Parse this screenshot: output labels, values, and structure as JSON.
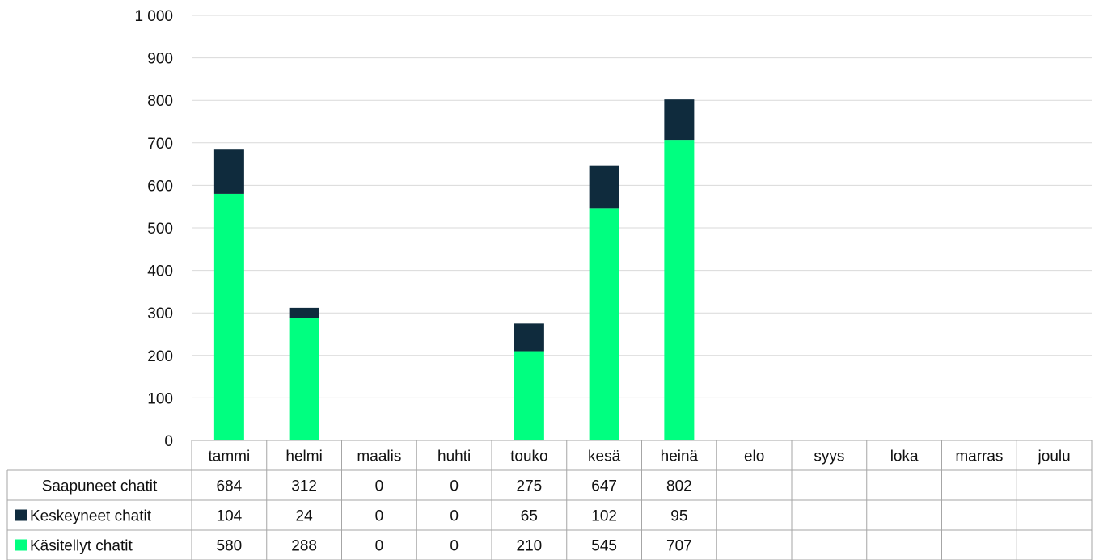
{
  "chart_data": {
    "type": "bar",
    "stacked": true,
    "categories": [
      "tammi",
      "helmi",
      "maalis",
      "huhti",
      "touko",
      "kesä",
      "heinä",
      "elo",
      "syys",
      "loka",
      "marras",
      "joulu"
    ],
    "series": [
      {
        "name": "Käsitellyt chatit",
        "values": [
          580,
          288,
          0,
          0,
          210,
          545,
          707,
          null,
          null,
          null,
          null,
          null
        ],
        "color": "#00ff80"
      },
      {
        "name": "Keskeyneet chatit",
        "values": [
          104,
          24,
          0,
          0,
          65,
          102,
          95,
          null,
          null,
          null,
          null,
          null
        ],
        "color": "#0f2b3d"
      }
    ],
    "table_rows": [
      {
        "label": "Saapuneet chatit",
        "values": [
          "684",
          "312",
          "0",
          "0",
          "275",
          "647",
          "802",
          "",
          "",
          "",
          "",
          ""
        ]
      },
      {
        "label": "Keskeyneet chatit",
        "values": [
          "104",
          "24",
          "0",
          "0",
          "65",
          "102",
          "95",
          "",
          "",
          "",
          "",
          ""
        ],
        "marker_color": "#0f2b3d"
      },
      {
        "label": "Käsitellyt chatit",
        "values": [
          "580",
          "288",
          "0",
          "0",
          "210",
          "545",
          "707",
          "",
          "",
          "",
          "",
          ""
        ],
        "marker_color": "#00ff80"
      }
    ],
    "y_ticks": [
      "0",
      "100",
      "200",
      "300",
      "400",
      "500",
      "600",
      "700",
      "800",
      "900",
      "1 000"
    ],
    "ylim": [
      0,
      1000
    ],
    "grid": true,
    "legend": "data-table"
  }
}
